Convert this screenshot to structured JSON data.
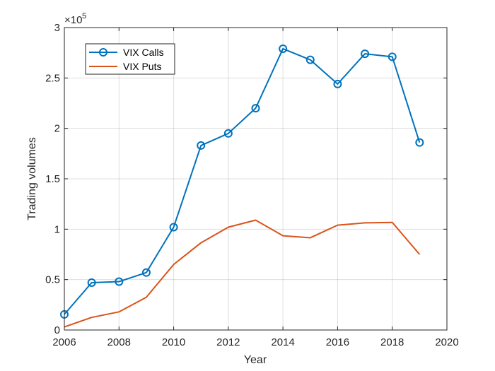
{
  "chart_data": {
    "type": "line",
    "title": "",
    "xlabel": "Year",
    "ylabel": "Trading volumes",
    "y_exponent_label": "×10",
    "y_exponent": "5",
    "xlim": [
      2006,
      2020
    ],
    "ylim": [
      0,
      3
    ],
    "xticks": [
      "2006",
      "2008",
      "2010",
      "2012",
      "2014",
      "2016",
      "2018",
      "2020"
    ],
    "yticks": [
      "0",
      "0.5",
      "1",
      "1.5",
      "2",
      "2.5",
      "3"
    ],
    "grid": true,
    "legend_position": "top-left",
    "x": [
      2006,
      2007,
      2008,
      2009,
      2010,
      2011,
      2012,
      2013,
      2014,
      2015,
      2016,
      2017,
      2018,
      2019
    ],
    "series": [
      {
        "name": "VIX Calls",
        "color": "#0072BD",
        "marker": "circle",
        "values": [
          0.155,
          0.47,
          0.48,
          0.57,
          1.02,
          1.83,
          1.95,
          2.2,
          2.79,
          2.68,
          2.44,
          2.74,
          2.71,
          1.86
        ]
      },
      {
        "name": "VIX Puts",
        "color": "#D95319",
        "marker": "none",
        "values": [
          0.03,
          0.125,
          0.18,
          0.325,
          0.65,
          0.865,
          1.02,
          1.09,
          0.935,
          0.915,
          1.04,
          1.063,
          1.067,
          0.75
        ]
      }
    ]
  }
}
